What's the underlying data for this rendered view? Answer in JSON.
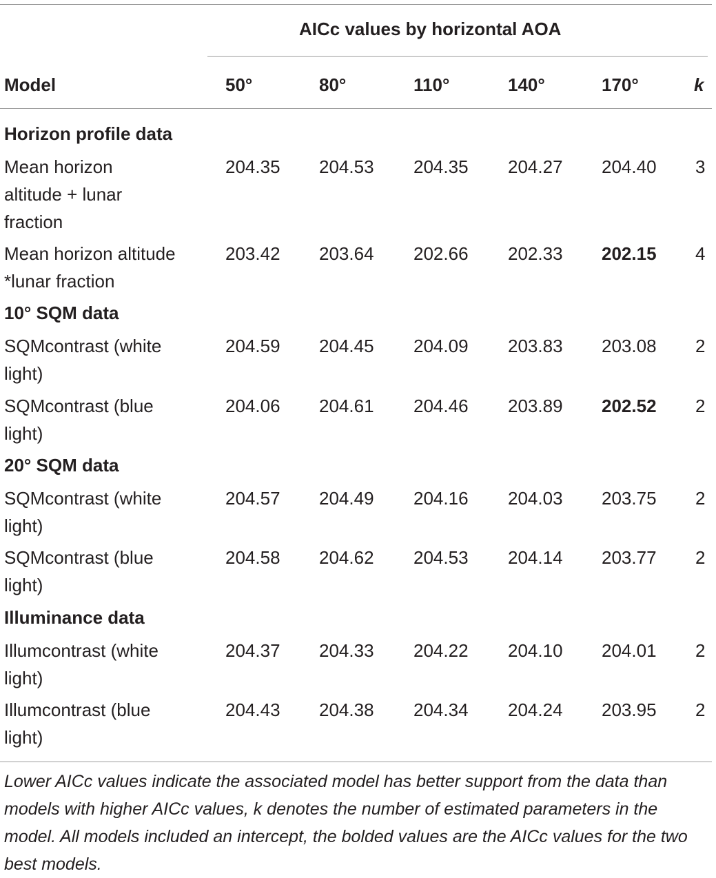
{
  "table": {
    "group_header": "AICc values by horizontal AOA",
    "columns": [
      "Model",
      "50°",
      "80°",
      "110°",
      "140°",
      "170°",
      "k"
    ],
    "sections": [
      {
        "title": "Horizon profile data",
        "rows": [
          {
            "model_lines": [
              "Mean horizon",
              "altitude + lunar",
              "fraction"
            ],
            "values": [
              "204.35",
              "204.53",
              "204.35",
              "204.27",
              "204.40"
            ],
            "k": "3",
            "bold_index": -1
          },
          {
            "model_lines": [
              "Mean horizon altitude",
              "*lunar fraction"
            ],
            "values": [
              "203.42",
              "203.64",
              "202.66",
              "202.33",
              "202.15"
            ],
            "k": "4",
            "bold_index": 4
          }
        ]
      },
      {
        "title": "10° SQM data",
        "rows": [
          {
            "model_lines": [
              "SQMcontrast (white",
              "light)"
            ],
            "values": [
              "204.59",
              "204.45",
              "204.09",
              "203.83",
              "203.08"
            ],
            "k": "2",
            "bold_index": -1
          },
          {
            "model_lines": [
              "SQMcontrast (blue",
              "light)"
            ],
            "values": [
              "204.06",
              "204.61",
              "204.46",
              "203.89",
              "202.52"
            ],
            "k": "2",
            "bold_index": 4
          }
        ]
      },
      {
        "title": "20° SQM data",
        "rows": [
          {
            "model_lines": [
              "SQMcontrast (white",
              "light)"
            ],
            "values": [
              "204.57",
              "204.49",
              "204.16",
              "204.03",
              "203.75"
            ],
            "k": "2",
            "bold_index": -1
          },
          {
            "model_lines": [
              "SQMcontrast (blue",
              "light)"
            ],
            "values": [
              "204.58",
              "204.62",
              "204.53",
              "204.14",
              "203.77"
            ],
            "k": "2",
            "bold_index": -1
          }
        ]
      },
      {
        "title": "Illuminance data",
        "rows": [
          {
            "model_lines": [
              "Illumcontrast (white",
              "light)"
            ],
            "values": [
              "204.37",
              "204.33",
              "204.22",
              "204.10",
              "204.01"
            ],
            "k": "2",
            "bold_index": -1
          },
          {
            "model_lines": [
              "Illumcontrast (blue",
              "light)"
            ],
            "values": [
              "204.43",
              "204.38",
              "204.34",
              "204.24",
              "203.95"
            ],
            "k": "2",
            "bold_index": -1
          }
        ]
      }
    ]
  },
  "footnote": "Lower AICc values indicate the associated model has better support from the data than models with higher AICc values, k denotes the number of estimated parameters in the model. All models included an intercept, the bolded values are the AICc values for the two best models."
}
